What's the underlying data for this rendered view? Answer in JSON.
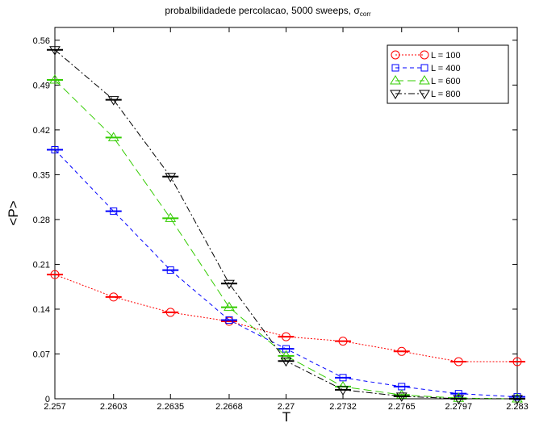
{
  "chart_data": {
    "type": "line",
    "title_main": "probalbilidadede percolacao, 5000 sweeps, ",
    "title_sigma": "σ",
    "title_sub": "corr",
    "xlabel": "T",
    "ylabel": "<P>",
    "x": [
      2.257,
      2.2603,
      2.2635,
      2.2668,
      2.27,
      2.2732,
      2.2765,
      2.2797,
      2.283
    ],
    "x_tick_labels": [
      "2.257",
      "2.2603",
      "2.2635",
      "2.2668",
      "2.27",
      "2.2732",
      "2.2765",
      "2.2797",
      "2.283"
    ],
    "ylim": [
      0,
      0.58
    ],
    "y_ticks": [
      0,
      0.07,
      0.14,
      0.21,
      0.28,
      0.35,
      0.42,
      0.49,
      0.56
    ],
    "y_tick_labels": [
      "0",
      "0.07",
      "0.14",
      "0.21",
      "0.28",
      "0.35",
      "0.42",
      "0.49",
      "0.56"
    ],
    "legend_position": "top-right",
    "grid": false,
    "series": [
      {
        "name": "L = 100",
        "color": "#ff0000",
        "marker": "circle",
        "line_style": "dotted",
        "values": [
          0.194,
          0.159,
          0.135,
          0.121,
          0.097,
          0.09,
          0.074,
          0.058,
          0.058
        ]
      },
      {
        "name": "L = 400",
        "color": "#0000ff",
        "marker": "square",
        "line_style": "dashed",
        "values": [
          0.389,
          0.293,
          0.201,
          0.123,
          0.078,
          0.033,
          0.019,
          0.008,
          0.003
        ]
      },
      {
        "name": "L = 600",
        "color": "#33cc00",
        "marker": "triangle-up",
        "line_style": "long-dash",
        "values": [
          0.498,
          0.408,
          0.282,
          0.143,
          0.067,
          0.019,
          0.006,
          0.001,
          0.0
        ]
      },
      {
        "name": "L = 800",
        "color": "#000000",
        "marker": "triangle-down",
        "line_style": "dash-dot",
        "values": [
          0.545,
          0.467,
          0.347,
          0.18,
          0.059,
          0.014,
          0.004,
          0.0,
          0.0
        ]
      }
    ]
  }
}
